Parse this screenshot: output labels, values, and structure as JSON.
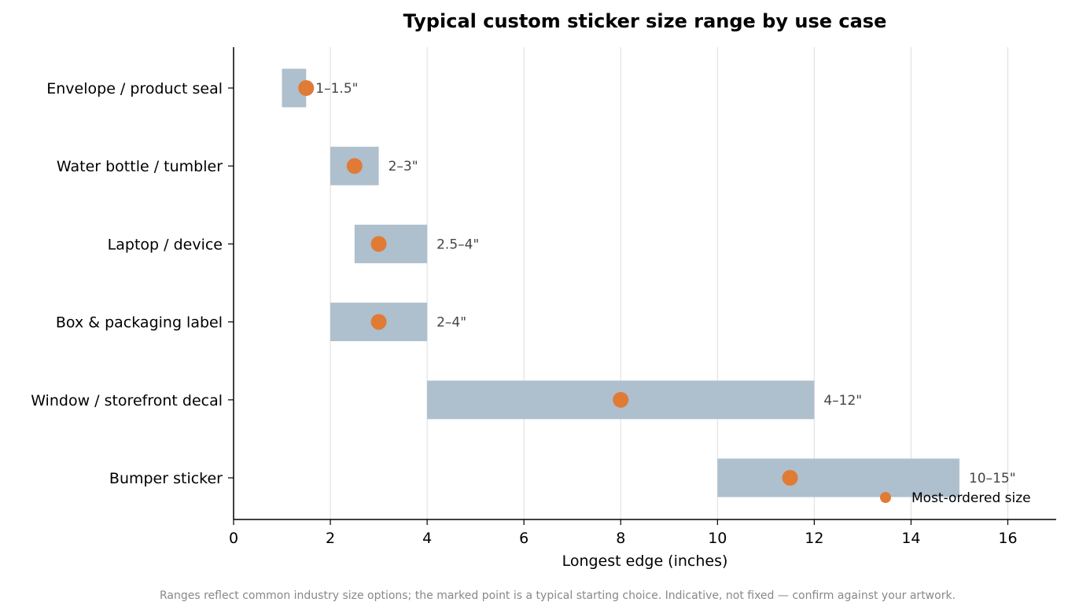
{
  "chart_data": {
    "type": "bar",
    "title": "Typical custom sticker size range by use case",
    "xlabel": "Longest edge (inches)",
    "ylabel": "",
    "xlim": [
      0,
      17
    ],
    "xticks": [
      0,
      2,
      4,
      6,
      8,
      10,
      12,
      14,
      16
    ],
    "grid": "vertical",
    "categories": [
      "Envelope / product seal",
      "Water bottle / tumbler",
      "Laptop / device",
      "Box & packaging label",
      "Window / storefront decal",
      "Bumper sticker"
    ],
    "ranges": [
      {
        "min": 1,
        "max": 1.5,
        "label": "1–1.5\""
      },
      {
        "min": 2,
        "max": 3,
        "label": "2–3\""
      },
      {
        "min": 2.5,
        "max": 4,
        "label": "2.5–4\""
      },
      {
        "min": 2,
        "max": 4,
        "label": "2–4\""
      },
      {
        "min": 4,
        "max": 12,
        "label": "4–12\""
      },
      {
        "min": 10,
        "max": 15,
        "label": "10–15\""
      }
    ],
    "most_ordered": [
      1.5,
      2.5,
      3,
      3,
      8,
      11.5
    ],
    "legend": {
      "label": "Most-ordered size",
      "placement": "lower-right"
    },
    "colors": {
      "range_bar": "#aebfcd",
      "marker": "#e07b35"
    },
    "note": "Ranges reflect common industry size options; the marked point is a typical starting choice. Indicative, not fixed — confirm against your artwork."
  }
}
